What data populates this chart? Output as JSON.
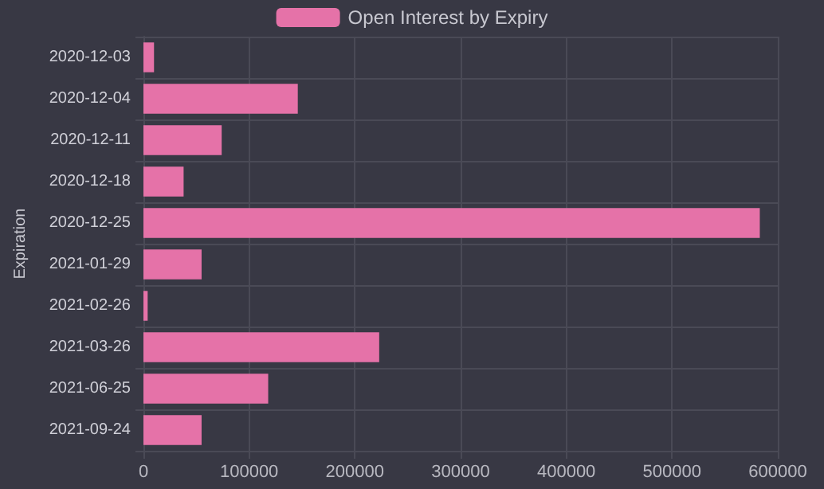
{
  "chart_data": {
    "type": "bar",
    "orientation": "horizontal",
    "ylabel": "Expiration",
    "categories": [
      "2020-12-03",
      "2020-12-04",
      "2020-12-11",
      "2020-12-18",
      "2020-12-25",
      "2021-01-29",
      "2021-02-26",
      "2021-03-26",
      "2021-06-25",
      "2021-09-24"
    ],
    "series": [
      {
        "name": "Open Interest by Expiry",
        "color": "#e572a8",
        "values": [
          10000,
          146000,
          74000,
          38000,
          583000,
          55000,
          4000,
          223000,
          118000,
          55000
        ]
      }
    ],
    "xlim": [
      0,
      600000
    ],
    "xticks": [
      0,
      100000,
      200000,
      300000,
      400000,
      500000,
      600000
    ],
    "grid": true,
    "legend": "top"
  }
}
